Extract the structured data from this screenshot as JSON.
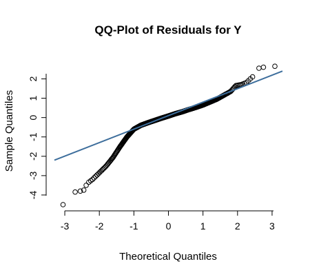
{
  "chart_data": {
    "type": "scatter",
    "title": "QQ-Plot of Residuals for Y",
    "xlabel": "Theoretical Quantiles",
    "ylabel": "Sample Quantiles",
    "xlim": [
      -3.3,
      3.3
    ],
    "ylim": [
      -4.5,
      2.8
    ],
    "xticks": [
      -3,
      -2,
      -1,
      0,
      1,
      2,
      3
    ],
    "yticks": [
      -4,
      -3,
      -2,
      -1,
      0,
      1,
      2
    ],
    "reference_line": {
      "x": [
        -3.3,
        3.3
      ],
      "y": [
        -2.2,
        2.4
      ],
      "color": "#3d6e9c"
    },
    "outliers": [
      {
        "x": -3.05,
        "y": -4.5
      },
      {
        "x": -2.7,
        "y": -3.85
      },
      {
        "x": -2.55,
        "y": -3.8
      },
      {
        "x": -2.45,
        "y": -3.75
      },
      {
        "x": -2.38,
        "y": -3.5
      },
      {
        "x": 2.62,
        "y": 2.55
      },
      {
        "x": 2.75,
        "y": 2.6
      },
      {
        "x": 3.08,
        "y": 2.65
      }
    ],
    "body_curve": [
      {
        "x": -2.35,
        "y": -3.4
      },
      {
        "x": -2.2,
        "y": -3.2
      },
      {
        "x": -2.0,
        "y": -2.85
      },
      {
        "x": -1.8,
        "y": -2.5
      },
      {
        "x": -1.6,
        "y": -2.05
      },
      {
        "x": -1.4,
        "y": -1.5
      },
      {
        "x": -1.2,
        "y": -1.0
      },
      {
        "x": -1.0,
        "y": -0.6
      },
      {
        "x": -0.8,
        "y": -0.4
      },
      {
        "x": -0.6,
        "y": -0.27
      },
      {
        "x": -0.4,
        "y": -0.15
      },
      {
        "x": -0.2,
        "y": -0.03
      },
      {
        "x": 0.0,
        "y": 0.08
      },
      {
        "x": 0.2,
        "y": 0.2
      },
      {
        "x": 0.4,
        "y": 0.3
      },
      {
        "x": 0.6,
        "y": 0.42
      },
      {
        "x": 0.8,
        "y": 0.53
      },
      {
        "x": 1.0,
        "y": 0.65
      },
      {
        "x": 1.2,
        "y": 0.8
      },
      {
        "x": 1.4,
        "y": 0.95
      },
      {
        "x": 1.6,
        "y": 1.15
      },
      {
        "x": 1.8,
        "y": 1.35
      },
      {
        "x": 1.95,
        "y": 1.65
      },
      {
        "x": 2.1,
        "y": 1.7
      },
      {
        "x": 2.25,
        "y": 1.8
      },
      {
        "x": 2.4,
        "y": 2.05
      },
      {
        "x": 2.5,
        "y": 2.2
      }
    ],
    "n_points": 500
  }
}
